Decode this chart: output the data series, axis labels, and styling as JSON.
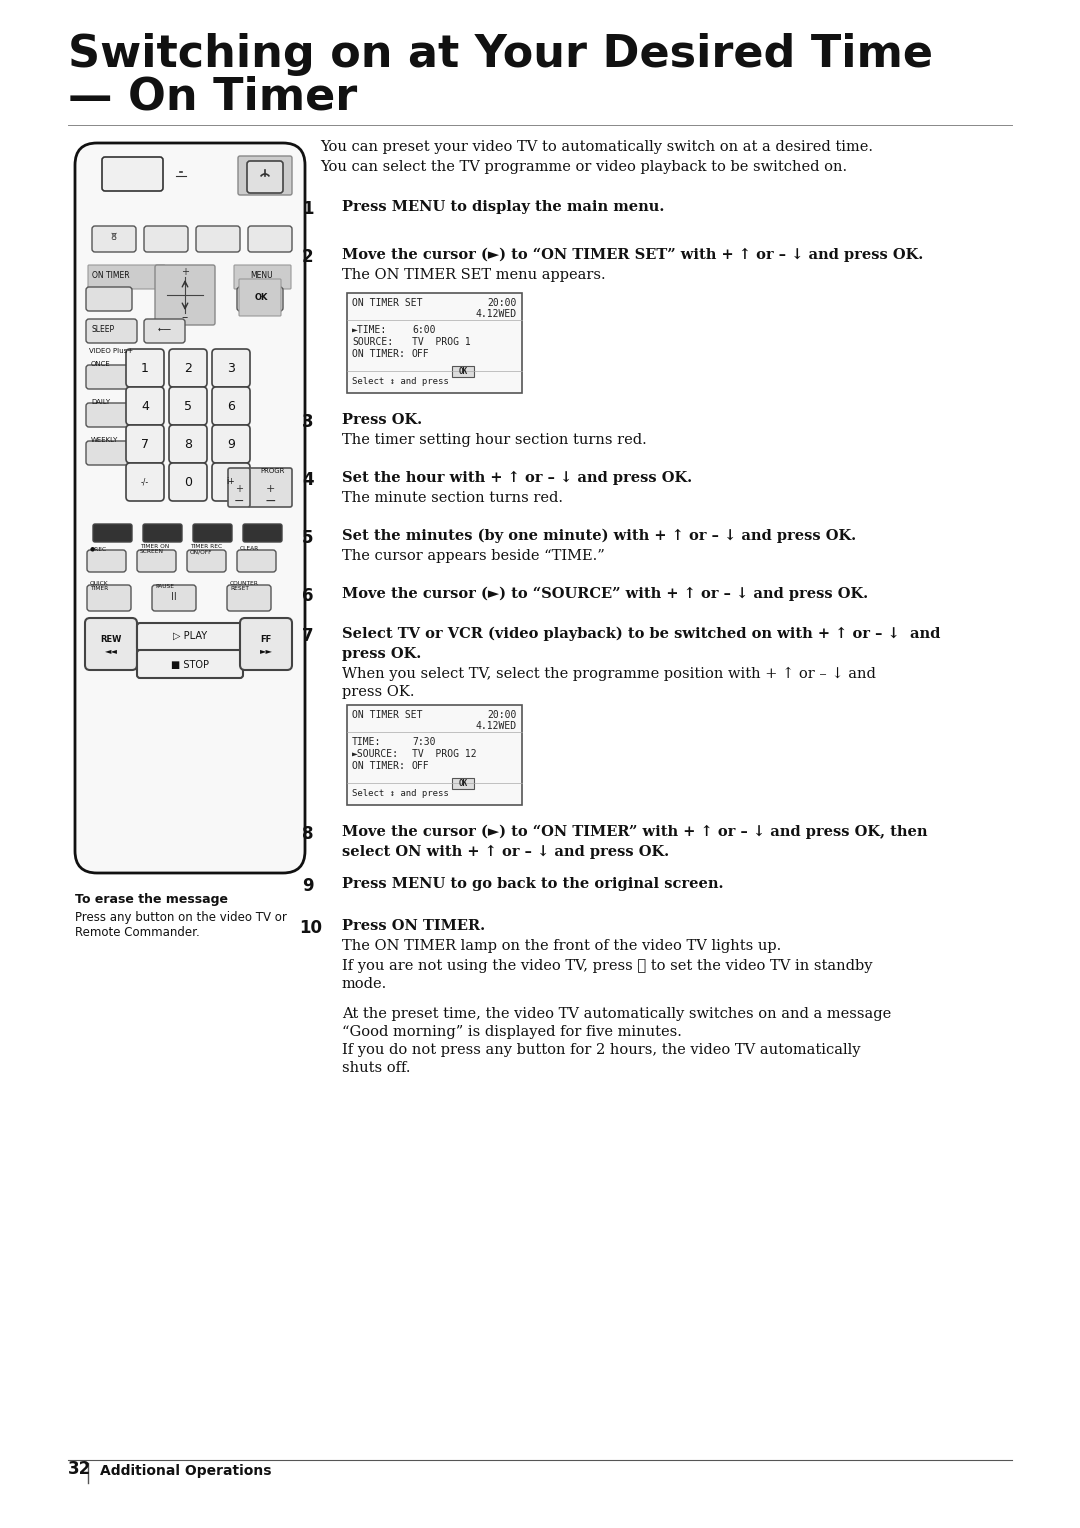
{
  "title_line1": "Switching on at Your Desired Time",
  "title_line2": "— On Timer",
  "bg_color": "#ffffff",
  "text_color": "#000000",
  "intro_text": "You can preset your video TV to automatically switch on at a desired time.\nYou can select the TV programme or video playback to be switched on.",
  "steps": [
    {
      "num": "1",
      "bold": "Press MENU to display the main menu."
    },
    {
      "num": "2",
      "bold": "Move the cursor (►) to “ON TIMER SET” with + ↑ or – ↓ and press OK.",
      "normal": "The ON TIMER SET menu appears."
    },
    {
      "num": "3",
      "bold": "Press OK.",
      "normal": "The timer setting hour section turns red."
    },
    {
      "num": "4",
      "bold": "Set the hour with + ↑ or – ↓ and press OK.",
      "normal": "The minute section turns red."
    },
    {
      "num": "5",
      "bold": "Set the minutes (by one minute) with + ↑ or – ↓ and press OK.",
      "normal": "The cursor appears beside “TIME.”"
    },
    {
      "num": "6",
      "bold": "Move the cursor (►) to “SOURCE” with + ↑ or – ↓ and press OK."
    },
    {
      "num": "7",
      "bold": "Select TV or VCR (video playback) to be switched on with + ↑ or – ↓  and press OK.",
      "normal": "When you select TV, select the programme position with + ↑ or – ↓ and\npress OK."
    },
    {
      "num": "8",
      "bold": "Move the cursor (►) to “ON TIMER” with + ↑ or – ↓ and press OK, then\nselect ON with + ↑ or – ↓ and press OK."
    },
    {
      "num": "9",
      "bold": "Press MENU to go back to the original screen."
    },
    {
      "num": "10",
      "bold": "Press ON TIMER.",
      "normal10": "The ON TIMER lamp on the front of the video TV lights up.\nIf you are not using the video TV, press ⏻ to set the video TV in standby\nmode.\n\nAt the preset time, the video TV automatically switches on and a message\n“Good morning” is displayed for five minutes.\nIf you do not press any button for 2 hours, the video TV automatically\nshuts off."
    }
  ],
  "footer_page": "32",
  "footer_section": "Additional Operations",
  "side_note_bold": "To erase the message",
  "side_note_text": "Press any button on the video TV or\nRemote Commander."
}
